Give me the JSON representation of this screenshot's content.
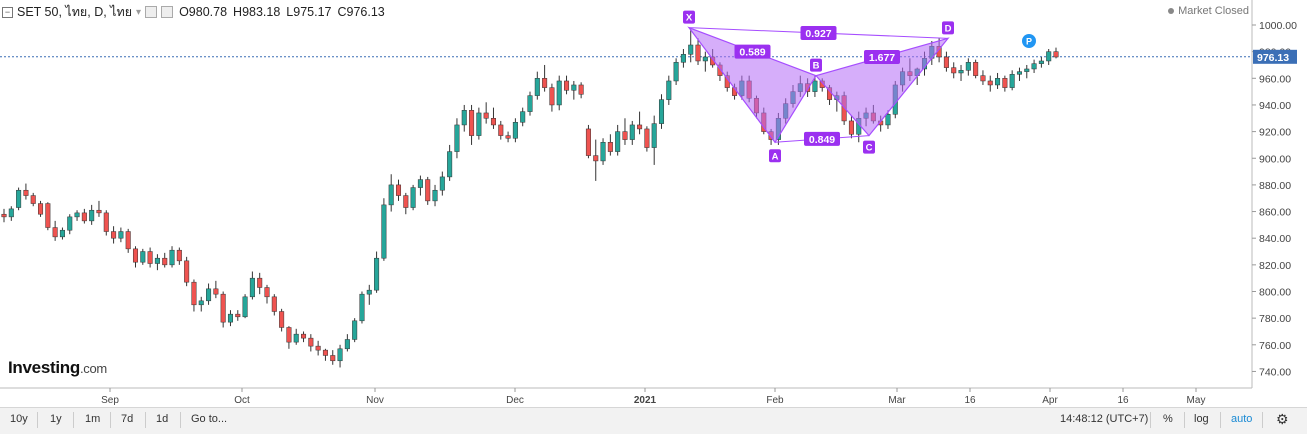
{
  "header": {
    "symbol": "SET 50, ไทย, D, ไทย",
    "open_label": "O",
    "open": "980.78",
    "high_label": "H",
    "high": "983.18",
    "low_label": "L",
    "low": "975.17",
    "close_label": "C",
    "close": "976.13"
  },
  "status": {
    "text": "Market Closed"
  },
  "logo": {
    "brand": "Investing",
    "suffix": ".com"
  },
  "price_label": "976.13",
  "colors": {
    "up": "#26a69a",
    "down": "#ef5350",
    "pattern": "#a64dff",
    "pattern_fill": "#b46cf5",
    "price_line": "#3b6fb6",
    "p_marker": "#2196f3"
  },
  "toolbar": {
    "ranges": [
      "10y",
      "1y",
      "1m",
      "7d",
      "1d",
      "Go to..."
    ],
    "time": "14:48:12 (UTC+7)",
    "percent": "%",
    "log": "log",
    "auto": "auto",
    "settings_icon": "gear-icon"
  },
  "chart_data": {
    "type": "candlestick",
    "y_ticks": [
      740,
      760,
      780,
      800,
      820,
      840,
      860,
      880,
      900,
      920,
      940,
      960,
      980,
      1000
    ],
    "ylim": [
      725,
      1015
    ],
    "x_ticks": [
      "Sep",
      "Oct",
      "Nov",
      "Dec",
      "2021",
      "Feb",
      "Mar",
      "16",
      "Apr",
      "16",
      "May"
    ],
    "last_price": 976.13,
    "candles_ohlc": [
      [
        858,
        862,
        852,
        856
      ],
      [
        856,
        864,
        853,
        862
      ],
      [
        863,
        878,
        861,
        876
      ],
      [
        876,
        881,
        869,
        872
      ],
      [
        872,
        874,
        864,
        866
      ],
      [
        866,
        868,
        856,
        858
      ],
      [
        866,
        867,
        846,
        848
      ],
      [
        848,
        853,
        838,
        841
      ],
      [
        841,
        848,
        839,
        846
      ],
      [
        846,
        858,
        843,
        856
      ],
      [
        856,
        861,
        853,
        859
      ],
      [
        859,
        862,
        851,
        853
      ],
      [
        853,
        865,
        850,
        861
      ],
      [
        861,
        868,
        856,
        859
      ],
      [
        859,
        861,
        842,
        845
      ],
      [
        845,
        849,
        836,
        840
      ],
      [
        840,
        848,
        837,
        845
      ],
      [
        845,
        847,
        829,
        832
      ],
      [
        832,
        834,
        818,
        822
      ],
      [
        822,
        832,
        820,
        830
      ],
      [
        830,
        833,
        818,
        821
      ],
      [
        821,
        828,
        816,
        825
      ],
      [
        825,
        829,
        818,
        820
      ],
      [
        820,
        834,
        818,
        831
      ],
      [
        831,
        833,
        820,
        823
      ],
      [
        823,
        826,
        804,
        807
      ],
      [
        807,
        809,
        785,
        790
      ],
      [
        790,
        796,
        785,
        793
      ],
      [
        793,
        806,
        790,
        802
      ],
      [
        802,
        808,
        795,
        798
      ],
      [
        798,
        800,
        773,
        777
      ],
      [
        777,
        786,
        774,
        783
      ],
      [
        783,
        786,
        778,
        781
      ],
      [
        781,
        798,
        780,
        796
      ],
      [
        796,
        815,
        794,
        810
      ],
      [
        810,
        814,
        798,
        803
      ],
      [
        803,
        805,
        791,
        796
      ],
      [
        796,
        798,
        782,
        785
      ],
      [
        785,
        787,
        770,
        773
      ],
      [
        773,
        774,
        757,
        762
      ],
      [
        762,
        772,
        760,
        768
      ],
      [
        768,
        770,
        762,
        765
      ],
      [
        765,
        768,
        755,
        759
      ],
      [
        759,
        763,
        752,
        756
      ],
      [
        756,
        757,
        748,
        752
      ],
      [
        752,
        756,
        745,
        748
      ],
      [
        748,
        760,
        743,
        757
      ],
      [
        757,
        768,
        755,
        764
      ],
      [
        764,
        780,
        762,
        778
      ],
      [
        778,
        800,
        776,
        798
      ],
      [
        798,
        805,
        790,
        801
      ],
      [
        801,
        830,
        799,
        825
      ],
      [
        825,
        870,
        823,
        865
      ],
      [
        865,
        888,
        860,
        880
      ],
      [
        880,
        884,
        868,
        872
      ],
      [
        872,
        874,
        858,
        863
      ],
      [
        863,
        880,
        861,
        878
      ],
      [
        878,
        887,
        872,
        884
      ],
      [
        884,
        886,
        865,
        868
      ],
      [
        868,
        880,
        864,
        876
      ],
      [
        876,
        890,
        872,
        886
      ],
      [
        886,
        910,
        883,
        905
      ],
      [
        905,
        930,
        900,
        925
      ],
      [
        925,
        940,
        920,
        936
      ],
      [
        936,
        940,
        910,
        917
      ],
      [
        917,
        938,
        914,
        934
      ],
      [
        934,
        942,
        926,
        930
      ],
      [
        930,
        938,
        922,
        925
      ],
      [
        925,
        928,
        914,
        917
      ],
      [
        917,
        920,
        912,
        915
      ],
      [
        915,
        930,
        912,
        927
      ],
      [
        927,
        938,
        924,
        935
      ],
      [
        935,
        950,
        932,
        947
      ],
      [
        947,
        965,
        944,
        960
      ],
      [
        960,
        970,
        950,
        953
      ],
      [
        953,
        956,
        935,
        940
      ],
      [
        940,
        962,
        936,
        958
      ],
      [
        958,
        962,
        948,
        951
      ],
      [
        951,
        958,
        944,
        955
      ],
      [
        955,
        957,
        945,
        948
      ],
      [
        922,
        925,
        900,
        902
      ],
      [
        902,
        914,
        883,
        898
      ],
      [
        898,
        915,
        895,
        912
      ],
      [
        912,
        918,
        902,
        905
      ],
      [
        905,
        925,
        902,
        920
      ],
      [
        920,
        930,
        910,
        914
      ],
      [
        914,
        928,
        910,
        925
      ],
      [
        925,
        935,
        918,
        922
      ],
      [
        922,
        924,
        905,
        908
      ],
      [
        908,
        932,
        895,
        926
      ],
      [
        926,
        948,
        922,
        944
      ],
      [
        944,
        962,
        940,
        958
      ],
      [
        958,
        975,
        955,
        972
      ],
      [
        972,
        982,
        968,
        978
      ],
      [
        978,
        998,
        972,
        985
      ],
      [
        985,
        990,
        970,
        973
      ],
      [
        973,
        980,
        965,
        976
      ],
      [
        976,
        982,
        968,
        970
      ],
      [
        970,
        972,
        958,
        962
      ],
      [
        962,
        965,
        950,
        953
      ],
      [
        953,
        956,
        944,
        947
      ],
      [
        947,
        962,
        944,
        958
      ],
      [
        958,
        962,
        942,
        945
      ],
      [
        945,
        947,
        930,
        934
      ],
      [
        934,
        938,
        918,
        920
      ],
      [
        920,
        922,
        910,
        914
      ],
      [
        914,
        934,
        910,
        930
      ],
      [
        930,
        945,
        926,
        941
      ],
      [
        941,
        955,
        938,
        950
      ],
      [
        950,
        962,
        946,
        956
      ],
      [
        956,
        960,
        946,
        950
      ],
      [
        950,
        962,
        946,
        958
      ],
      [
        958,
        960,
        950,
        953
      ],
      [
        953,
        955,
        940,
        944
      ],
      [
        944,
        950,
        935,
        947
      ],
      [
        947,
        950,
        925,
        928
      ],
      [
        928,
        932,
        915,
        918
      ],
      [
        918,
        935,
        912,
        930
      ],
      [
        930,
        938,
        924,
        934
      ],
      [
        934,
        940,
        926,
        928
      ],
      [
        928,
        932,
        920,
        925
      ],
      [
        925,
        936,
        922,
        933
      ],
      [
        933,
        958,
        930,
        955
      ],
      [
        955,
        968,
        950,
        965
      ],
      [
        965,
        975,
        958,
        962
      ],
      [
        962,
        968,
        955,
        967
      ],
      [
        967,
        980,
        962,
        975
      ],
      [
        975,
        988,
        970,
        984
      ],
      [
        984,
        990,
        972,
        976
      ],
      [
        976,
        980,
        965,
        968
      ],
      [
        968,
        972,
        960,
        964
      ],
      [
        964,
        970,
        958,
        966
      ],
      [
        966,
        975,
        962,
        972
      ],
      [
        972,
        974,
        960,
        962
      ],
      [
        962,
        966,
        955,
        958
      ],
      [
        958,
        962,
        950,
        955
      ],
      [
        955,
        964,
        952,
        960
      ],
      [
        960,
        962,
        950,
        953
      ],
      [
        953,
        966,
        951,
        963
      ],
      [
        963,
        968,
        958,
        965
      ],
      [
        965,
        970,
        960,
        967
      ],
      [
        967,
        974,
        964,
        971
      ],
      [
        971,
        976,
        968,
        973
      ],
      [
        973,
        982,
        970,
        980
      ],
      [
        980,
        983,
        975,
        976
      ]
    ],
    "harmonic_pattern": {
      "points": [
        {
          "label": "X",
          "y": 998
        },
        {
          "label": "A",
          "y": 912
        },
        {
          "label": "B",
          "y": 962
        },
        {
          "label": "C",
          "y": 917
        },
        {
          "label": "D",
          "y": 990
        }
      ],
      "ratios": {
        "XB": "0.589",
        "XD": "0.927",
        "AC": "0.849",
        "BD": "1.677"
      }
    }
  }
}
